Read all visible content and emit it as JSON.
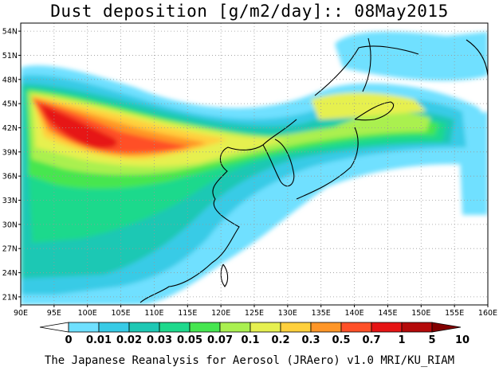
{
  "title": "Dust deposition [g/m2/day]:: 08May2015",
  "footer": "The Japanese Reanalysis for Aerosol (JRAero) v1.0 MRI/KU_RIAM",
  "map": {
    "lon_range": [
      90,
      160
    ],
    "lat_range": [
      20,
      55
    ],
    "lon_ticks": [
      "90E",
      "95E",
      "100E",
      "105E",
      "110E",
      "115E",
      "120E",
      "125E",
      "130E",
      "135E",
      "140E",
      "145E",
      "150E",
      "155E",
      "160E"
    ],
    "lat_ticks": [
      "54N",
      "51N",
      "48N",
      "45N",
      "42N",
      "39N",
      "36N",
      "33N",
      "30N",
      "27N",
      "24N",
      "21N"
    ],
    "grid": true
  },
  "colorbar": {
    "labels": [
      "0",
      "0.01",
      "0.02",
      "0.03",
      "0.05",
      "0.07",
      "0.1",
      "0.2",
      "0.3",
      "0.5",
      "0.7",
      "1",
      "5",
      "10"
    ],
    "colors": [
      "#ffffff",
      "#6fe0ff",
      "#38cbe6",
      "#1ec8b4",
      "#1ed98c",
      "#46e650",
      "#aaf050",
      "#e6f050",
      "#ffd03c",
      "#ff9628",
      "#ff5028",
      "#e61414",
      "#b40a0a",
      "#820000"
    ]
  }
}
